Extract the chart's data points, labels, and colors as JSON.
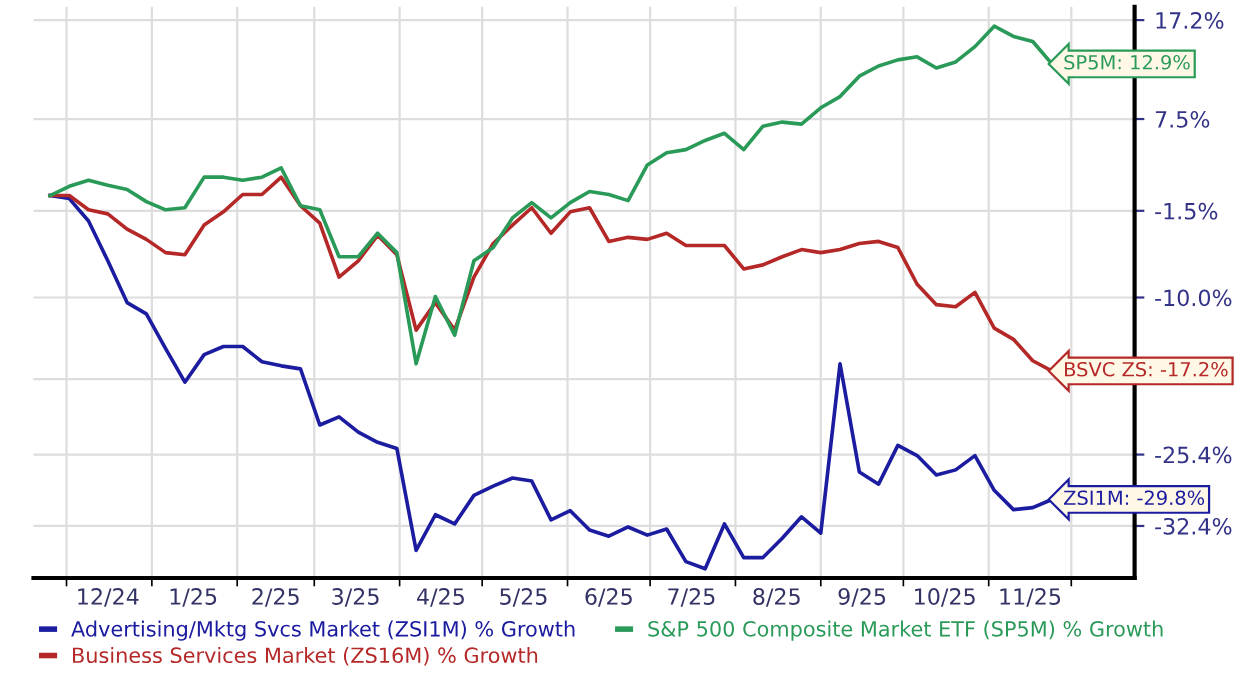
{
  "chart_data": {
    "type": "line",
    "x": [
      "2024-11-25",
      "2024-12-02",
      "2024-12-09",
      "2024-12-16",
      "2024-12-23",
      "2024-12-30",
      "2025-01-06",
      "2025-01-13",
      "2025-01-20",
      "2025-01-27",
      "2025-02-03",
      "2025-02-10",
      "2025-02-17",
      "2025-02-24",
      "2025-03-03",
      "2025-03-10",
      "2025-03-17",
      "2025-03-24",
      "2025-03-31",
      "2025-04-07",
      "2025-04-14",
      "2025-04-21",
      "2025-04-28",
      "2025-05-05",
      "2025-05-12",
      "2025-05-19",
      "2025-05-26",
      "2025-06-02",
      "2025-06-09",
      "2025-06-16",
      "2025-06-23",
      "2025-06-30",
      "2025-07-07",
      "2025-07-14",
      "2025-07-21",
      "2025-07-28",
      "2025-08-04",
      "2025-08-11",
      "2025-08-18",
      "2025-08-25",
      "2025-09-01",
      "2025-09-08",
      "2025-09-15",
      "2025-09-22",
      "2025-09-29",
      "2025-10-06",
      "2025-10-13",
      "2025-10-20",
      "2025-10-27",
      "2025-11-03",
      "2025-11-10",
      "2025-11-17",
      "2025-11-24"
    ],
    "series": [
      {
        "name": "Advertising/Mktg Svcs Market (ZSI1M) % Growth",
        "color": "#1c1ca0",
        "values": [
          0,
          -0.3,
          -2.5,
          -6.4,
          -10.5,
          -11.6,
          -15.0,
          -18.3,
          -15.6,
          -14.8,
          -14.8,
          -16.3,
          -16.7,
          -17.0,
          -22.5,
          -21.7,
          -23.2,
          -24.2,
          -24.8,
          -34.8,
          -31.3,
          -32.2,
          -29.4,
          -28.5,
          -27.7,
          -28.0,
          -31.8,
          -30.9,
          -32.8,
          -33.4,
          -32.5,
          -33.3,
          -32.7,
          -35.9,
          -36.6,
          -32.2,
          -35.5,
          -35.5,
          -33.6,
          -31.5,
          -33.1,
          -16.5,
          -27.1,
          -28.3,
          -24.5,
          -25.5,
          -27.4,
          -26.9,
          -25.5,
          -28.9,
          -30.8,
          -30.6,
          -29.8
        ]
      },
      {
        "name": "Business Services Market (ZS16M) % Growth",
        "color": "#b52828",
        "values": [
          0,
          0,
          -1.4,
          -1.8,
          -3.3,
          -4.3,
          -5.6,
          -5.8,
          -2.9,
          -1.6,
          0.1,
          0.1,
          1.8,
          -1.0,
          -2.7,
          -8.0,
          -6.4,
          -3.9,
          -5.8,
          -13.2,
          -10.5,
          -13.2,
          -8.0,
          -4.7,
          -2.9,
          -1.2,
          -3.7,
          -1.6,
          -1.2,
          -4.5,
          -4.1,
          -4.3,
          -3.7,
          -4.9,
          -4.9,
          -4.9,
          -7.2,
          -6.8,
          -6.0,
          -5.3,
          -5.6,
          -5.3,
          -4.7,
          -4.5,
          -5.1,
          -8.7,
          -10.7,
          -10.9,
          -9.5,
          -13.0,
          -14.1,
          -16.2,
          -17.2
        ]
      },
      {
        "name": "S&P 500 Composite Market ETF (SP5M) % Growth",
        "color": "#2a9a58",
        "values": [
          0,
          0.9,
          1.5,
          1.0,
          0.6,
          -0.6,
          -1.4,
          -1.2,
          1.8,
          1.8,
          1.5,
          1.8,
          2.7,
          -1.0,
          -1.4,
          -6.0,
          -6.0,
          -3.7,
          -5.6,
          -16.5,
          -9.9,
          -13.7,
          -6.4,
          -5.1,
          -2.2,
          -0.7,
          -2.2,
          -0.7,
          0.4,
          0.1,
          -0.5,
          3.0,
          4.2,
          4.5,
          5.4,
          6.1,
          4.5,
          6.8,
          7.2,
          7.0,
          8.6,
          9.7,
          11.7,
          12.7,
          13.3,
          13.6,
          12.5,
          13.1,
          14.6,
          16.6,
          15.6,
          15.1,
          12.9
        ]
      }
    ],
    "xlim": [
      "2024-11-19",
      "2025-12-24"
    ],
    "xticks": [
      {
        "value": "2024-12-01",
        "label": null
      },
      {
        "value": "2024-12-16",
        "label": "12/24"
      },
      {
        "value": "2025-01-01",
        "label": null
      },
      {
        "value": "2025-01-16",
        "label": "1/25"
      },
      {
        "value": "2025-02-01",
        "label": null
      },
      {
        "value": "2025-02-15",
        "label": "2/25"
      },
      {
        "value": "2025-03-01",
        "label": null
      },
      {
        "value": "2025-03-16",
        "label": "3/25"
      },
      {
        "value": "2025-04-01",
        "label": null
      },
      {
        "value": "2025-04-16",
        "label": "4/25"
      },
      {
        "value": "2025-05-01",
        "label": null
      },
      {
        "value": "2025-05-16",
        "label": "5/25"
      },
      {
        "value": "2025-06-01",
        "label": null
      },
      {
        "value": "2025-06-16",
        "label": "6/25"
      },
      {
        "value": "2025-07-01",
        "label": null
      },
      {
        "value": "2025-07-16",
        "label": "7/25"
      },
      {
        "value": "2025-08-01",
        "label": null
      },
      {
        "value": "2025-08-16",
        "label": "8/25"
      },
      {
        "value": "2025-09-01",
        "label": null
      },
      {
        "value": "2025-09-16",
        "label": "9/25"
      },
      {
        "value": "2025-10-01",
        "label": null
      },
      {
        "value": "2025-10-16",
        "label": "10/25"
      },
      {
        "value": "2025-11-01",
        "label": null
      },
      {
        "value": "2025-11-16",
        "label": "11/25"
      },
      {
        "value": "2025-12-01",
        "label": null
      }
    ],
    "ylim": [
      -37.5,
      18.5
    ],
    "yticks": [
      {
        "value": 17.2,
        "label": "17.2%"
      },
      {
        "value": 7.5,
        "label": "7.5%"
      },
      {
        "value": -1.5,
        "label": "-1.5%"
      },
      {
        "value": -10.0,
        "label": "-10.0%"
      },
      {
        "value": -18,
        "label": null
      },
      {
        "value": -25.4,
        "label": "-25.4%"
      },
      {
        "value": -32.4,
        "label": "-32.4%"
      }
    ],
    "annotations": [
      {
        "text": "ZSI1M: -29.8%",
        "x": "2025-11-24",
        "y": -29.8
      },
      {
        "text": "BSVC ZS: -17.2%",
        "x": "2025-11-24",
        "y": -17.2
      },
      {
        "text": "SP5M: 12.9%",
        "x": "2025-11-24",
        "y": 12.9
      }
    ],
    "grid": true,
    "legend": "bottom",
    "marker": "none",
    "line_style": "solid"
  }
}
